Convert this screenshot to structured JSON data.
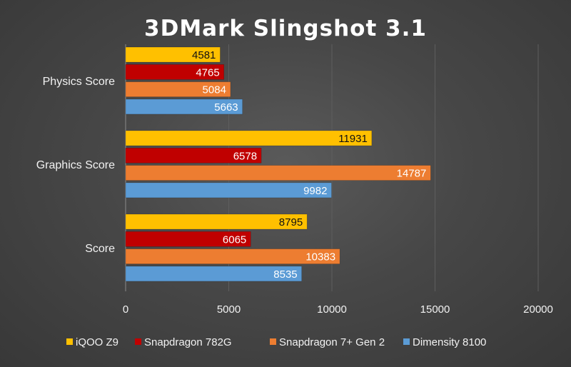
{
  "chart_data": {
    "type": "bar",
    "orientation": "horizontal",
    "title": "3DMark Slingshot 3.1",
    "xlabel": "",
    "ylabel": "",
    "categories": [
      "Physics Score",
      "Graphics Score",
      "Score"
    ],
    "xlim": [
      0,
      20000
    ],
    "x_ticks": [
      "0",
      "5000",
      "10000",
      "15000",
      "20000"
    ],
    "x_tick_values": [
      0,
      5000,
      10000,
      15000,
      20000
    ],
    "grid": true,
    "legend_position": "bottom",
    "series": [
      {
        "name": "iQOO Z9",
        "color": "#ffc000",
        "label_color": "#111111",
        "values": [
          4581,
          11931,
          8795
        ]
      },
      {
        "name": "Snapdragon 782G",
        "color": "#c00000",
        "label_color": "#ffffff",
        "values": [
          4765,
          6578,
          6065
        ]
      },
      {
        "name": "Snapdragon 7+ Gen 2",
        "color": "#ed7d31",
        "label_color": "#ffffff",
        "values": [
          5084,
          14787,
          10383
        ]
      },
      {
        "name": "Dimensity 8100",
        "color": "#5b9bd5",
        "label_color": "#ffffff",
        "values": [
          5663,
          9982,
          8535
        ]
      }
    ]
  }
}
